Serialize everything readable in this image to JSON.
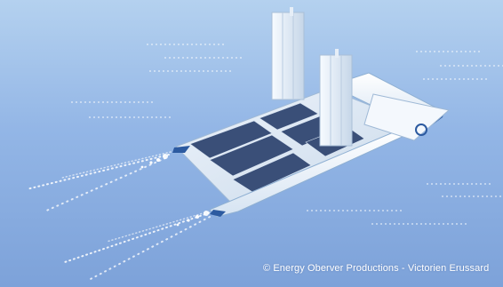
{
  "image": {
    "subject": "solar-and-wind-powered catamaran",
    "credit": "© Energy Oberver Productions - Victorien Erussard"
  }
}
